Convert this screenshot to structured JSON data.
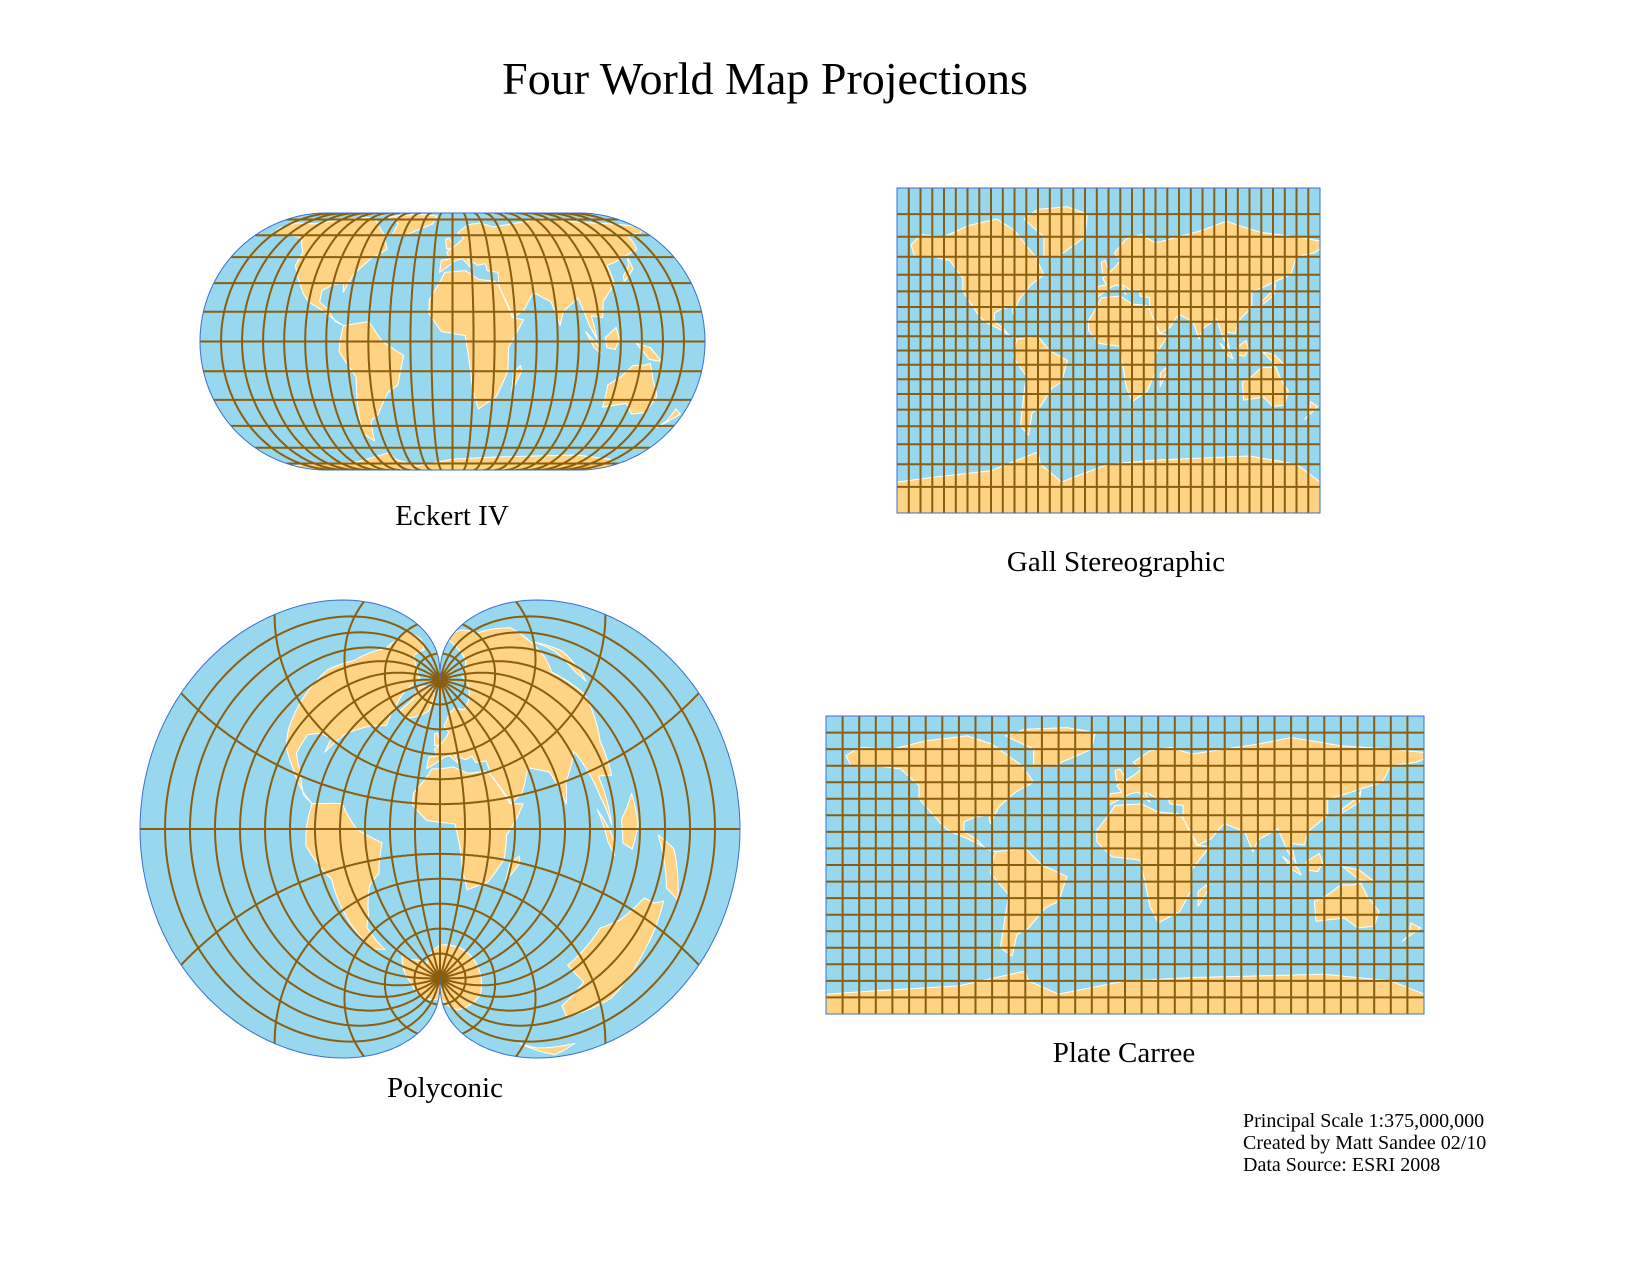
{
  "title": "Four World Map Projections",
  "colors": {
    "ocean": "#97d8ef",
    "land": "#fed383",
    "graticule": "#8b5e0f",
    "border": "#ffffff",
    "outline": "#3a6fd0"
  },
  "maps": [
    {
      "id": "eckert",
      "name": "Eckert IV",
      "projection": "eckert4",
      "graticule_deg": 15
    },
    {
      "id": "gall",
      "name": "Gall Stereographic",
      "projection": "gall",
      "graticule_deg": 10
    },
    {
      "id": "polyconic",
      "name": "Polyconic",
      "projection": "polyconic",
      "graticule_deg": 15
    },
    {
      "id": "plate",
      "name": "Plate Carree",
      "projection": "platecarree",
      "graticule_deg": 10
    }
  ],
  "credits": {
    "scale": "Principal Scale 1:375,000,000",
    "author": "Created by Matt Sandee 02/10",
    "source": "Data Source: ESRI 2008"
  }
}
